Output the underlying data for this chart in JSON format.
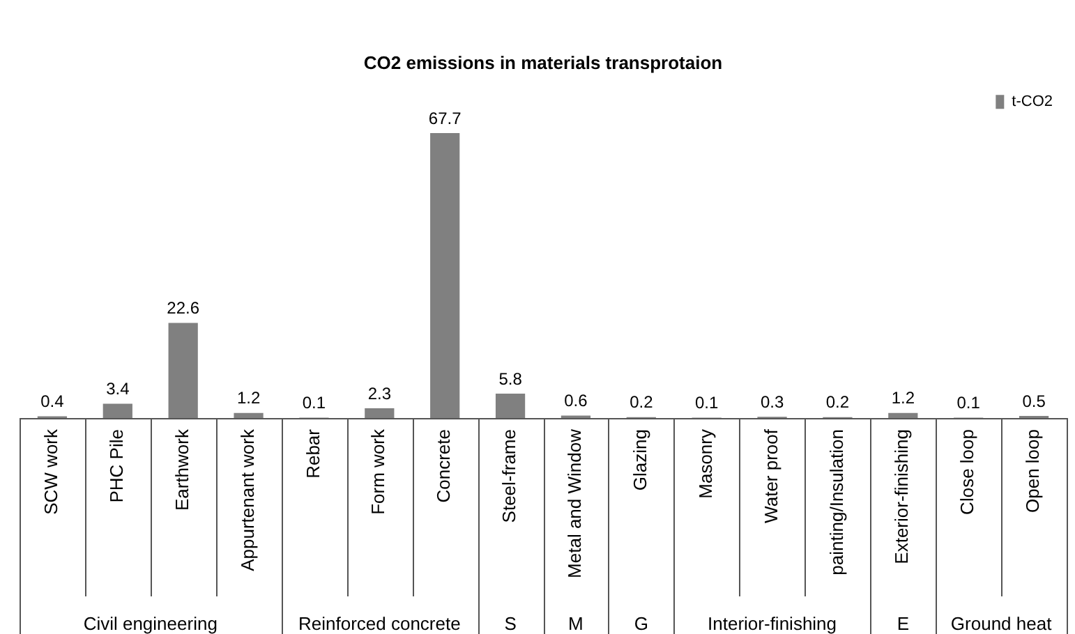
{
  "chart_data": {
    "type": "bar",
    "title": "CO2 emissions in materials transprotaion",
    "categories": [
      "SCW work",
      "PHC Pile",
      "Earthwork",
      "Appurtenant work",
      "Rebar",
      "Form work",
      "Concrete",
      "Steel-frame",
      "Metal and Window",
      "Glazing",
      "Masonry",
      "Water proof",
      "painting/Insulation",
      "Exterior-finishing",
      "Close loop",
      "Open loop"
    ],
    "series": [
      {
        "name": "t-CO2",
        "color": "#808080",
        "values": [
          0.4,
          3.4,
          22.6,
          1.2,
          0.1,
          2.3,
          67.7,
          5.8,
          0.6,
          0.2,
          0.1,
          0.3,
          0.2,
          1.2,
          0.1,
          0.5
        ]
      }
    ],
    "annotations": [
      "Civil engineering",
      "Reinforced concrete",
      "S",
      "M",
      "G",
      "Interior-finishing",
      "E",
      "Ground heat"
    ],
    "data_labels": true,
    "legend": "top right"
  }
}
